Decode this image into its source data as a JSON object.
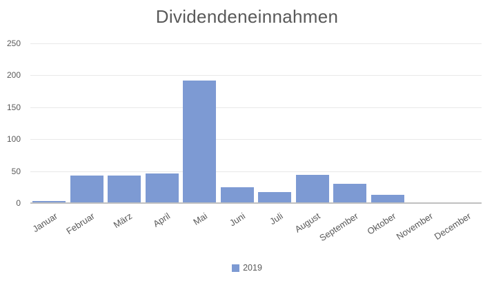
{
  "title": "Dividendeneinnahmen",
  "legend": {
    "label": "2019"
  },
  "colors": {
    "bar": "#7D9AD3",
    "axis_line": "#BFBFBF",
    "gridline": "#E8E8E8",
    "text": "#595959",
    "background": "#FFFFFF"
  },
  "chart_data": {
    "type": "bar",
    "title": "Dividendeneinnahmen",
    "categories": [
      "Januar",
      "Februar",
      "März",
      "April",
      "Mai",
      "Juni",
      "Juli",
      "August",
      "September",
      "Oktober",
      "November",
      "December"
    ],
    "series": [
      {
        "name": "2019",
        "color": "#7D9AD3",
        "values": [
          2,
          42,
          42,
          45,
          191,
          24,
          16,
          43,
          29,
          12,
          0,
          0
        ]
      }
    ],
    "xlabel": "",
    "ylabel": "",
    "ylim": [
      0,
      250
    ],
    "yticks": [
      0,
      50,
      100,
      150,
      200,
      250
    ],
    "grid": true,
    "legend_position": "bottom",
    "x_tick_rotation_deg": -33
  }
}
